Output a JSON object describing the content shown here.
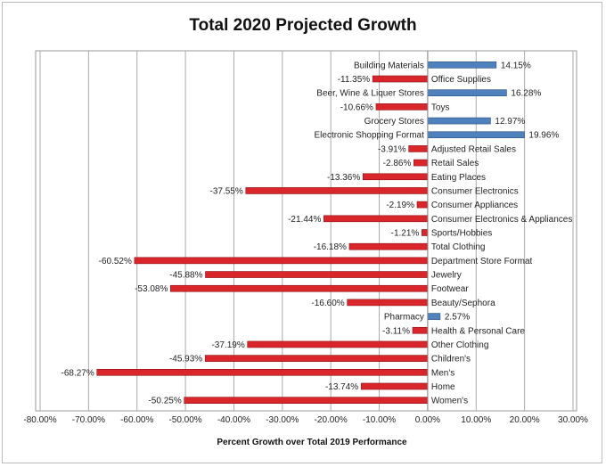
{
  "chart_data": {
    "type": "bar",
    "orientation": "horizontal",
    "title": "Total 2020 Projected Growth",
    "xlabel": "Percent Growth over Total 2019 Performance",
    "ylabel": "",
    "xlim": [
      -80,
      30
    ],
    "x_ticks": [
      "-80.00%",
      "-70.00%",
      "-60.00%",
      "-50.00%",
      "-40.00%",
      "-30.00%",
      "-20.00%",
      "-10.00%",
      "0.00%",
      "10.00%",
      "20.00%",
      "30.00%"
    ],
    "grid": "vertical",
    "legend": "none",
    "colors": {
      "positive": "#4f81bd",
      "negative": "#d9262b"
    },
    "categories": [
      "Building Materials",
      "Office Supplies",
      "Beer, Wine & Liquer Stores",
      "Toys",
      "Grocery Stores",
      "Electronic Shopping Format",
      "Adjusted Retail Sales",
      "Retail Sales",
      "Eating Places",
      "Consumer Electronics",
      "Consumer Appliances",
      "Consumer Electronics & Appliances",
      "Sports/Hobbies",
      "Total Clothing",
      "Department Store Format",
      "Jewelry",
      "Footwear",
      "Beauty/Sephora",
      "Pharmacy",
      "Health & Personal Care",
      "Other Clothing",
      "Children's",
      "Men's",
      "Home",
      "Women's"
    ],
    "values": [
      14.15,
      -11.35,
      16.28,
      -10.66,
      12.97,
      19.96,
      -3.91,
      -2.86,
      -13.36,
      -37.55,
      -2.19,
      -21.44,
      -1.21,
      -16.18,
      -60.52,
      -45.88,
      -53.08,
      -16.6,
      2.57,
      -3.11,
      -37.19,
      -45.93,
      -68.27,
      -13.74,
      -50.25
    ],
    "data_labels": [
      "14.15%",
      "-11.35%",
      "16.28%",
      "-10.66%",
      "12.97%",
      "19.96%",
      "-3.91%",
      "-2.86%",
      "-13.36%",
      "-37.55%",
      "-2.19%",
      "-21.44%",
      "-1.21%",
      "-16.18%",
      "-60.52%",
      "-45.88%",
      "-53.08%",
      "-16.60%",
      "2.57%",
      "-3.11%",
      "-37.19%",
      "-45.93%",
      "-68.27%",
      "-13.74%",
      "-50.25%"
    ]
  }
}
